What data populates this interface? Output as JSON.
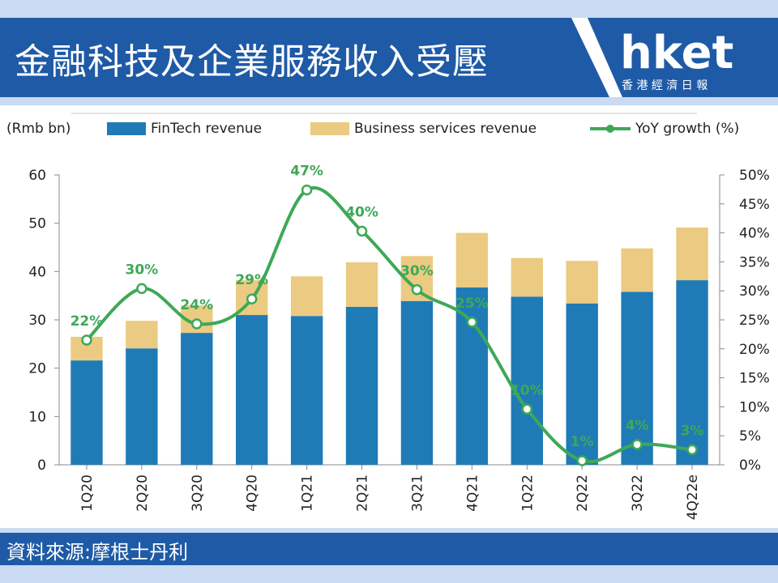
{
  "header": {
    "title": "金融科技及企業服務收入受壓",
    "logo_text": "hket",
    "logo_subtext": "香 港 經 濟 日 報"
  },
  "footer": {
    "source": "資料來源:摩根士丹利"
  },
  "colors": {
    "banner_blue": "#1e5aa6",
    "fintech": "#1f7bb6",
    "business": "#ebcb81",
    "yoy": "#3ea857"
  },
  "chart_data": {
    "type": "bar",
    "stacked": true,
    "unit_label": "(Rmb bn)",
    "categories": [
      "1Q20",
      "2Q20",
      "3Q20",
      "4Q20",
      "1Q21",
      "2Q21",
      "3Q21",
      "4Q21",
      "1Q22",
      "2Q22",
      "3Q22",
      "4Q22e"
    ],
    "series": [
      {
        "name": "FinTech revenue",
        "values": [
          21.6,
          24.1,
          27.3,
          31.0,
          30.8,
          32.7,
          33.9,
          36.7,
          34.8,
          33.4,
          35.8,
          38.2
        ]
      },
      {
        "name": "Business services revenue",
        "values": [
          4.9,
          5.7,
          5.7,
          7.2,
          8.2,
          9.2,
          9.3,
          11.3,
          8.0,
          8.8,
          9.0,
          10.9
        ]
      }
    ],
    "line_series": {
      "name": "YoY growth (%)",
      "values": [
        21.5,
        30.4,
        24.3,
        28.6,
        47.4,
        40.3,
        30.2,
        24.6,
        9.6,
        0.7,
        3.5,
        2.6
      ],
      "labels": [
        "22%",
        "30%",
        "24%",
        "29%",
        "47%",
        "40%",
        "30%",
        "25%",
        "10%",
        "1%",
        "4%",
        "3%"
      ]
    },
    "y_left": {
      "min": 0,
      "max": 60,
      "ticks": [
        "0",
        "10",
        "20",
        "30",
        "40",
        "50",
        "60"
      ]
    },
    "y_right": {
      "min": 0,
      "max": 50,
      "ticks": [
        "0%",
        "5%",
        "10%",
        "15%",
        "20%",
        "25%",
        "30%",
        "35%",
        "40%",
        "45%",
        "50%"
      ]
    },
    "legend_position": "top"
  }
}
